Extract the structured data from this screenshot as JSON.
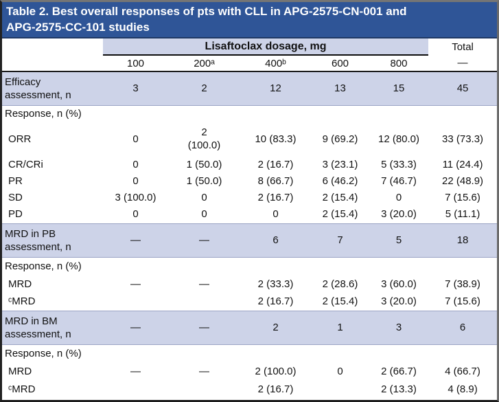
{
  "title": "Table 2. Best overall responses of pts with CLL in APG-2575-CN-001 and\nAPG-2575-CC-101 studies",
  "colors": {
    "title_bg": "#2f5597",
    "title_border": "#1f3864",
    "band_bg": "#cdd3e8",
    "section_bg": "#cdd3e8"
  },
  "header": {
    "dosage_label": "Lisaftoclax dosage, mg",
    "total_label": "Total",
    "doses": [
      "100",
      "200ᵃ",
      "400ᵇ",
      "600",
      "800",
      "—"
    ]
  },
  "rows": [
    {
      "label": "Efficacy\nassessment, n",
      "type": "section",
      "cells": [
        "3",
        "2",
        "12",
        "13",
        "15",
        "45"
      ]
    },
    {
      "label": "Response, n (%)",
      "type": "subhead",
      "cells": [
        "",
        "",
        "",
        "",
        "",
        ""
      ]
    },
    {
      "label": "ORR",
      "type": "data",
      "cells": [
        "0",
        "2\n(100.0)",
        "10 (83.3)",
        "9 (69.2)",
        "12 (80.0)",
        "33 (73.3)"
      ]
    },
    {
      "label": "CR/CRi",
      "type": "data",
      "cells": [
        "0",
        "1 (50.0)",
        "2 (16.7)",
        "3 (23.1)",
        "5 (33.3)",
        "11 (24.4)"
      ]
    },
    {
      "label": "PR",
      "type": "data",
      "cells": [
        "0",
        "1 (50.0)",
        "8 (66.7)",
        "6 (46.2)",
        "7 (46.7)",
        "22 (48.9)"
      ]
    },
    {
      "label": "SD",
      "type": "data",
      "cells": [
        "3 (100.0)",
        "0",
        "2 (16.7)",
        "2 (15.4)",
        "0",
        "7 (15.6)"
      ]
    },
    {
      "label": "PD",
      "type": "data",
      "cells": [
        "0",
        "0",
        "0",
        "2 (15.4)",
        "3 (20.0)",
        "5 (11.1)"
      ]
    },
    {
      "label": "MRD in PB\nassessment, n",
      "type": "section",
      "cells": [
        "—",
        "—",
        "6",
        "7",
        "5",
        "18"
      ]
    },
    {
      "label": "Response, n (%)",
      "type": "subhead",
      "cells": [
        "",
        "",
        "",
        "",
        "",
        ""
      ]
    },
    {
      "label": "MRD",
      "type": "data",
      "cells": [
        "—",
        "—",
        "2 (33.3)",
        "2 (28.6)",
        "3 (60.0)",
        "7 (38.9)"
      ]
    },
    {
      "label": "ᶜMRD",
      "type": "data",
      "cells": [
        "",
        "",
        "2 (16.7)",
        "2 (15.4)",
        "3 (20.0)",
        "7 (15.6)"
      ]
    },
    {
      "label": "MRD in BM\nassessment, n",
      "type": "section",
      "cells": [
        "—",
        "—",
        "2",
        "1",
        "3",
        "6"
      ]
    },
    {
      "label": "Response, n (%)",
      "type": "subhead",
      "cells": [
        "",
        "",
        "",
        "",
        "",
        ""
      ]
    },
    {
      "label": "MRD",
      "type": "data",
      "cells": [
        "—",
        "—",
        "2 (100.0)",
        "0",
        "2 (66.7)",
        "4 (66.7)"
      ]
    },
    {
      "label": "ᶜMRD",
      "type": "data",
      "cells": [
        "",
        "",
        "2 (16.7)",
        "",
        "2 (13.3)",
        "4 (8.9)"
      ]
    }
  ]
}
